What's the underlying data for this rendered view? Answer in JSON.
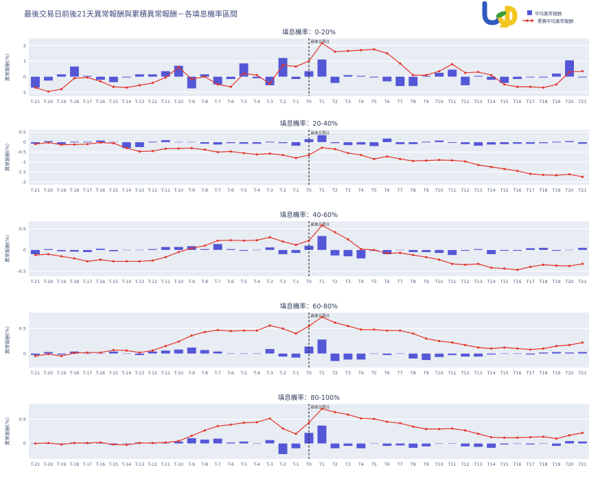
{
  "header": {
    "title": "最後交易日前後21天異常報酬與累積異常報酬－各填息機率區間",
    "logo": "tej"
  },
  "legend": {
    "bar_label": "平均異常報酬",
    "line_label": "累積平均異常報酬"
  },
  "colors": {
    "bar": "#5457d6",
    "zero_bar": "#aab0ea",
    "line": "#e23327",
    "plot_bg": "#e8ecf3",
    "grid": "#ffffff",
    "tick": "#4a5878",
    "subtitle": "#303c5c",
    "vline": "#2a2a2a",
    "annotation": "#3a3a3a"
  },
  "chart_data": [
    {
      "type": "bar+line",
      "title": "填息機率：0-20%",
      "ylabel": "異常報酬(%)",
      "vline_at": "T0",
      "vline_label": "最後交易日",
      "ylim": [
        -1.25,
        2.45
      ],
      "yticks": [
        2,
        1,
        0,
        -1
      ],
      "categories": [
        "T-21",
        "T-20",
        "T-19",
        "T-18",
        "T-17",
        "T-16",
        "T-15",
        "T-14",
        "T-13",
        "T-12",
        "T-11",
        "T-10",
        "T-9",
        "T-8",
        "T-7",
        "T-6",
        "T-5",
        "T-4",
        "T-3",
        "T-2",
        "T-1",
        "T0",
        "T1",
        "T2",
        "T3",
        "T4",
        "T5",
        "T6",
        "T7",
        "T8",
        "T9",
        "T10",
        "T11",
        "T12",
        "T13",
        "T14",
        "T15",
        "T16",
        "T17",
        "T18",
        "T19",
        "T20",
        "T21"
      ],
      "series": [
        {
          "name": "平均異常報酬",
          "type": "bar",
          "values": [
            -0.7,
            -0.25,
            0.15,
            0.65,
            0.05,
            -0.2,
            -0.35,
            -0.05,
            0.15,
            0.15,
            0.35,
            0.7,
            -0.75,
            0.15,
            -0.5,
            -0.15,
            0.85,
            -0.1,
            -0.55,
            1.2,
            -0.15,
            0.35,
            1.1,
            -0.4,
            0.1,
            0.05,
            -0.05,
            -0.3,
            -0.6,
            -0.6,
            0.05,
            0.25,
            0.45,
            -0.55,
            0.05,
            -0.2,
            -0.4,
            -0.15,
            -0.02,
            -0.05,
            0.2,
            1.05,
            -0.05
          ]
        },
        {
          "name": "累積平均異常報酬",
          "type": "line",
          "values": [
            -0.7,
            -0.95,
            -0.8,
            -0.1,
            -0.05,
            -0.3,
            -0.65,
            -0.7,
            -0.55,
            -0.4,
            -0.05,
            0.6,
            -0.15,
            0.0,
            -0.5,
            -0.65,
            0.2,
            0.1,
            -0.45,
            0.75,
            0.65,
            1.0,
            2.15,
            1.6,
            1.65,
            1.7,
            1.75,
            1.5,
            0.85,
            0.1,
            0.1,
            0.35,
            0.8,
            0.25,
            0.3,
            0.1,
            -0.5,
            -0.65,
            -0.65,
            -0.7,
            -0.5,
            0.3,
            0.35
          ]
        }
      ]
    },
    {
      "type": "bar+line",
      "title": "填息機率：20-40%",
      "ylabel": "異常報酬(%)",
      "vline_at": "T0",
      "vline_label": "最後交易日",
      "ylim": [
        -2.15,
        0.62
      ],
      "yticks": [
        0.5,
        0,
        -0.5,
        -1,
        -1.5,
        -2
      ],
      "categories": [
        "T-21",
        "T-20",
        "T-19",
        "T-18",
        "T-17",
        "T-16",
        "T-15",
        "T-14",
        "T-13",
        "T-12",
        "T-11",
        "T-10",
        "T-9",
        "T-8",
        "T-7",
        "T-6",
        "T-5",
        "T-4",
        "T-3",
        "T-2",
        "T-1",
        "T0",
        "T1",
        "T2",
        "T3",
        "T4",
        "T5",
        "T6",
        "T7",
        "T8",
        "T9",
        "T10",
        "T11",
        "T12",
        "T13",
        "T14",
        "T15",
        "T16",
        "T17",
        "T18",
        "T19",
        "T20",
        "T21"
      ],
      "series": [
        {
          "name": "平均異常報酬",
          "type": "bar",
          "values": [
            -0.08,
            0.05,
            -0.1,
            0.02,
            0.02,
            0.08,
            0.0,
            -0.3,
            -0.25,
            0.02,
            0.1,
            0.0,
            0.0,
            -0.08,
            -0.12,
            -0.05,
            -0.08,
            -0.08,
            0.02,
            -0.05,
            -0.18,
            0.15,
            0.35,
            -0.05,
            -0.15,
            -0.12,
            -0.2,
            0.18,
            -0.1,
            -0.1,
            0.02,
            0.08,
            -0.02,
            -0.1,
            -0.18,
            -0.12,
            -0.1,
            -0.08,
            -0.08,
            -0.05,
            0.02,
            0.05,
            -0.08
          ]
        },
        {
          "name": "累積平均異常報酬",
          "type": "line",
          "values": [
            -0.1,
            -0.02,
            -0.13,
            -0.12,
            -0.1,
            -0.02,
            -0.05,
            -0.3,
            -0.47,
            -0.45,
            -0.33,
            -0.32,
            -0.3,
            -0.38,
            -0.5,
            -0.47,
            -0.55,
            -0.62,
            -0.58,
            -0.65,
            -0.8,
            -0.65,
            -0.28,
            -0.35,
            -0.55,
            -0.65,
            -0.85,
            -0.72,
            -0.85,
            -0.95,
            -0.93,
            -0.9,
            -0.92,
            -0.97,
            -1.15,
            -1.25,
            -1.35,
            -1.45,
            -1.6,
            -1.65,
            -1.67,
            -1.62,
            -1.75
          ]
        }
      ]
    },
    {
      "type": "bar+line",
      "title": "填息機率：40-60%",
      "ylabel": "異常報酬(%)",
      "vline_at": "T0",
      "vline_label": "最後交易日",
      "ylim": [
        -0.62,
        0.68
      ],
      "yticks": [
        0.5,
        0,
        -0.5
      ],
      "categories": [
        "T-21",
        "T-20",
        "T-19",
        "T-18",
        "T-17",
        "T-16",
        "T-15",
        "T-14",
        "T-13",
        "T-12",
        "T-11",
        "T-10",
        "T-9",
        "T-8",
        "T-7",
        "T-6",
        "T-5",
        "T-4",
        "T-3",
        "T-2",
        "T-1",
        "T0",
        "T1",
        "T2",
        "T3",
        "T4",
        "T5",
        "T6",
        "T7",
        "T8",
        "T9",
        "T10",
        "T11",
        "T12",
        "T13",
        "T14",
        "T15",
        "T16",
        "T17",
        "T18",
        "T19",
        "T20",
        "T21"
      ],
      "series": [
        {
          "name": "平均異常報酬",
          "type": "bar",
          "values": [
            -0.1,
            0.02,
            -0.03,
            -0.04,
            -0.05,
            0.03,
            -0.03,
            0.0,
            0.0,
            0.02,
            0.07,
            0.07,
            0.09,
            0.02,
            0.14,
            0.02,
            -0.02,
            -0.01,
            0.06,
            -0.1,
            -0.07,
            0.1,
            0.33,
            -0.13,
            -0.15,
            -0.2,
            -0.02,
            -0.1,
            0.01,
            -0.05,
            -0.05,
            -0.07,
            -0.12,
            -0.02,
            0.02,
            -0.1,
            -0.02,
            -0.02,
            0.04,
            0.05,
            -0.02,
            -0.01,
            0.05
          ]
        },
        {
          "name": "累積平均異常報酬",
          "type": "line",
          "values": [
            -0.12,
            -0.1,
            -0.15,
            -0.2,
            -0.27,
            -0.23,
            -0.27,
            -0.27,
            -0.27,
            -0.25,
            -0.17,
            -0.05,
            0.04,
            0.1,
            0.22,
            0.23,
            0.22,
            0.23,
            0.3,
            0.2,
            0.12,
            0.22,
            0.58,
            0.42,
            0.25,
            0.02,
            0.0,
            -0.08,
            -0.07,
            -0.12,
            -0.17,
            -0.23,
            -0.33,
            -0.35,
            -0.33,
            -0.42,
            -0.44,
            -0.47,
            -0.4,
            -0.35,
            -0.37,
            -0.38,
            -0.33
          ]
        }
      ]
    },
    {
      "type": "bar+line",
      "title": "填息機率：60-80%",
      "ylabel": "異常報酬(%)",
      "vline_at": "T0",
      "vline_label": "最後交易日",
      "ylim": [
        -0.28,
        0.82
      ],
      "yticks": [
        0.5,
        0
      ],
      "categories": [
        "T-21",
        "T-20",
        "T-19",
        "T-18",
        "T-17",
        "T-16",
        "T-15",
        "T-14",
        "T-13",
        "T-12",
        "T-11",
        "T-10",
        "T-9",
        "T-8",
        "T-7",
        "T-6",
        "T-5",
        "T-4",
        "T-3",
        "T-2",
        "T-1",
        "T0",
        "T1",
        "T2",
        "T3",
        "T4",
        "T5",
        "T6",
        "T7",
        "T8",
        "T9",
        "T10",
        "T11",
        "T12",
        "T13",
        "T14",
        "T15",
        "T16",
        "T17",
        "T18",
        "T19",
        "T20",
        "T21"
      ],
      "series": [
        {
          "name": "平均異常報酬",
          "type": "bar",
          "values": [
            -0.03,
            0.03,
            -0.02,
            0.04,
            0.0,
            0.0,
            0.04,
            0.0,
            -0.03,
            0.04,
            0.06,
            0.08,
            0.12,
            0.07,
            0.04,
            -0.01,
            0.01,
            0.0,
            0.09,
            -0.06,
            -0.08,
            0.14,
            0.28,
            -0.15,
            -0.12,
            -0.12,
            -0.01,
            -0.03,
            0.0,
            -0.1,
            -0.13,
            -0.07,
            -0.03,
            -0.06,
            -0.06,
            -0.02,
            -0.01,
            -0.01,
            -0.02,
            0.02,
            0.03,
            0.02,
            0.03
          ]
        },
        {
          "name": "累積平均異常報酬",
          "type": "line",
          "values": [
            -0.05,
            -0.01,
            -0.05,
            0.01,
            0.02,
            0.02,
            0.07,
            0.06,
            0.02,
            0.06,
            0.15,
            0.24,
            0.36,
            0.43,
            0.47,
            0.45,
            0.46,
            0.46,
            0.56,
            0.5,
            0.4,
            0.55,
            0.73,
            0.62,
            0.55,
            0.48,
            0.48,
            0.46,
            0.46,
            0.4,
            0.3,
            0.25,
            0.22,
            0.17,
            0.12,
            0.1,
            0.12,
            0.1,
            0.08,
            0.1,
            0.15,
            0.17,
            0.22
          ]
        }
      ]
    },
    {
      "type": "bar+line",
      "title": "填息機率：80-100%",
      "ylabel": "異常報酬(%)",
      "vline_at": "T0",
      "vline_label": "最後交易日",
      "ylim": [
        -0.32,
        0.82
      ],
      "yticks": [
        0.5,
        0
      ],
      "categories": [
        "T-21",
        "T-20",
        "T-19",
        "T-18",
        "T-17",
        "T-16",
        "T-15",
        "T-14",
        "T-13",
        "T-12",
        "T-11",
        "T-10",
        "T-9",
        "T-8",
        "T-7",
        "T-6",
        "T-5",
        "T-4",
        "T-3",
        "T-2",
        "T-1",
        "T0",
        "T1",
        "T2",
        "T3",
        "T4",
        "T5",
        "T6",
        "T7",
        "T8",
        "T9",
        "T10",
        "T11",
        "T12",
        "T13",
        "T14",
        "T15",
        "T16",
        "T17",
        "T18",
        "T19",
        "T20",
        "T21"
      ],
      "series": [
        {
          "name": "平均異常報酬",
          "type": "bar",
          "values": [
            0.0,
            0.01,
            -0.02,
            0.02,
            0.0,
            0.0,
            -0.03,
            -0.01,
            0.02,
            0.0,
            0.01,
            0.04,
            0.11,
            0.08,
            0.1,
            0.02,
            0.04,
            0.01,
            0.07,
            -0.22,
            -0.1,
            0.22,
            0.37,
            -0.1,
            -0.05,
            -0.1,
            -0.01,
            -0.05,
            -0.04,
            -0.09,
            -0.06,
            0.0,
            0.0,
            -0.06,
            -0.07,
            -0.09,
            -0.02,
            0.0,
            -0.02,
            -0.01,
            -0.05,
            0.05,
            0.04
          ]
        },
        {
          "name": "累積平均異常報酬",
          "type": "line",
          "values": [
            0.0,
            0.01,
            -0.02,
            0.01,
            0.01,
            0.02,
            -0.02,
            -0.03,
            0.01,
            0.01,
            0.02,
            0.05,
            0.16,
            0.27,
            0.36,
            0.39,
            0.43,
            0.44,
            0.52,
            0.31,
            0.2,
            0.43,
            0.72,
            0.65,
            0.6,
            0.52,
            0.51,
            0.45,
            0.42,
            0.35,
            0.3,
            0.3,
            0.31,
            0.27,
            0.2,
            0.13,
            0.12,
            0.12,
            0.13,
            0.14,
            0.1,
            0.17,
            0.22
          ]
        }
      ]
    }
  ]
}
